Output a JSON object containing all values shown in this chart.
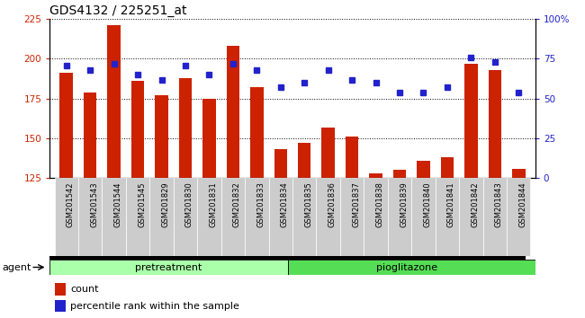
{
  "title": "GDS4132 / 225251_at",
  "samples": [
    "GSM201542",
    "GSM201543",
    "GSM201544",
    "GSM201545",
    "GSM201829",
    "GSM201830",
    "GSM201831",
    "GSM201832",
    "GSM201833",
    "GSM201834",
    "GSM201835",
    "GSM201836",
    "GSM201837",
    "GSM201838",
    "GSM201839",
    "GSM201840",
    "GSM201841",
    "GSM201842",
    "GSM201843",
    "GSM201844"
  ],
  "counts": [
    191,
    179,
    221,
    186,
    177,
    188,
    175,
    208,
    182,
    143,
    147,
    157,
    151,
    128,
    130,
    136,
    138,
    197,
    193,
    131
  ],
  "percentiles": [
    71,
    68,
    72,
    65,
    62,
    71,
    65,
    72,
    68,
    57,
    60,
    68,
    62,
    60,
    54,
    54,
    57,
    76,
    73,
    54
  ],
  "ylim_left": [
    125,
    225
  ],
  "ylim_right": [
    0,
    100
  ],
  "yticks_left": [
    125,
    150,
    175,
    200,
    225
  ],
  "yticks_right": [
    0,
    25,
    50,
    75,
    100
  ],
  "bar_color": "#cc2200",
  "dot_color": "#2222cc",
  "pretreatment_color": "#aaffaa",
  "pioglitazone_color": "#55dd55",
  "xticklabel_bg": "#cccccc",
  "n_pretreatment": 10,
  "n_pioglitazone": 10,
  "agent_label": "agent",
  "pretreatment_label": "pretreatment",
  "pioglitazone_label": "pioglitazone",
  "count_label": "count",
  "percentile_label": "percentile rank within the sample",
  "title_fontsize": 10,
  "axis_fontsize": 8,
  "tick_fontsize": 7.5,
  "legend_fontsize": 8
}
